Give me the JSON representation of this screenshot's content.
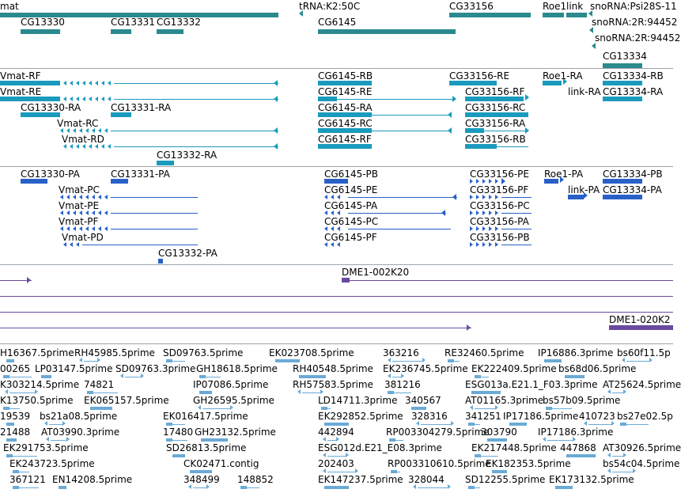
{
  "colors": {
    "gene": "#2a8a8e",
    "transcript": "#1a9bbd",
    "protein": "#2860c8",
    "clone": "#6a4aa0",
    "est": "#6aaad6",
    "divider": "#9aa3ad"
  },
  "tracks": {
    "genes": {
      "labels": [
        "mat",
        "tRNA:K2:50C",
        "CG33156",
        "Roe1",
        "link",
        "snoRNA:Psi28S-11",
        "CG13330",
        "CG13331",
        "CG13332",
        "CG6145",
        "snoRNA:2R:94452",
        "snoRNA:2R:94452",
        "CG13334"
      ]
    },
    "transcripts": {
      "labels": [
        "Vmat-RF",
        "Vmat-RE",
        "CG13330-RA",
        "CG13331-RA",
        "Vmat-RC",
        "Vmat-RD",
        "CG13332-RA",
        "CG6145-RB",
        "CG6145-RE",
        "CG6145-RA",
        "CG6145-RC",
        "CG6145-RF",
        "CG33156-RE",
        "CG33156-RF",
        "CG33156-RC",
        "CG33156-RA",
        "CG33156-RB",
        "Roe1-RA",
        "link-RA",
        "CG13334-RB",
        "CG13334-RA"
      ]
    },
    "proteins": {
      "labels": [
        "CG13330-PA",
        "CG13331-PA",
        "Vmat-PC",
        "Vmat-PE",
        "Vmat-PF",
        "Vmat-PD",
        "CG13332-PA",
        "CG6145-PB",
        "CG6145-PE",
        "CG6145-PA",
        "CG6145-PC",
        "CG6145-PF",
        "CG33156-PE",
        "CG33156-PF",
        "CG33156-PC",
        "CG33156-PA",
        "CG33156-PB",
        "Roe1-PA",
        "link-PA",
        "CG13334-PB",
        "CG13334-PA"
      ]
    },
    "clones": {
      "labels": [
        "DME1-002K20",
        "DME1-020K2"
      ]
    },
    "ests": {
      "labels": [
        "H16367.5prime",
        "RH45985.5prime",
        "SD09763.5prime",
        "EK023708.5prime",
        "363216",
        "RE32460.5prime",
        "IP16886.3prime",
        "bs60f11.5p",
        "00265",
        "LP03147.5prime",
        "SD09763.3prime",
        "GH18618.5prime",
        "RH40548.5prime",
        "EK236745.5prime",
        "EK222409.5prime",
        "bs68d06.5prime",
        "K303214.5prime",
        "74821",
        "IP07086.5prime",
        "RH57583.5prime",
        "381216",
        "ESG013a.E21.1_F03.3prime",
        "AT25624.5prime",
        "K13750.5prime",
        "EK065157.5prime",
        "GH26595.5prime",
        "LD14711.3prime",
        "340567",
        "AT01165.3prime",
        "bs57b09.5prime",
        "19539",
        "bs21a08.5prime",
        "EK016417.5prime",
        "EK292852.5prime",
        "328316",
        "341251",
        "IP17186.5prime",
        "410723",
        "bs27e02.5p",
        "21488",
        "AT03990.3prime",
        "17480",
        "GH23132.5prime",
        "442894",
        "RP003304279.5prime",
        "303790",
        "IP17186.3prime",
        "EK291753.5prime",
        "SD26813.5prime",
        "ESG012d.E21_E08.3prime",
        "EK217448.5prime",
        "447868",
        "AT30926.5prime",
        "EK243723.5prime",
        "CK02471.contig",
        "202403",
        "RP003310610.5prime",
        "EK182353.5prime",
        "bs54c04.5prime",
        "367121",
        "EN14208.5prime",
        "348499",
        "148852",
        "EK147237.5prime",
        "328044",
        "SD12255.5prime",
        "EK173132.5prime"
      ]
    }
  }
}
